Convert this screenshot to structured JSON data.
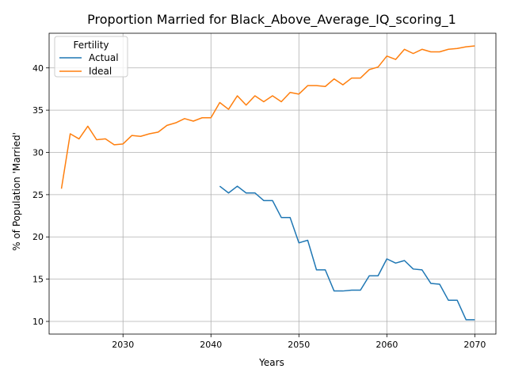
{
  "chart_data": {
    "type": "line",
    "title": "Proportion Married for Black_Above_Average_IQ_scoring_1",
    "xlabel": "Years",
    "ylabel": "% of Population 'Married'",
    "xlim": [
      2021.6,
      2072.4
    ],
    "ylim": [
      8.5,
      44.1
    ],
    "xticks": [
      2030,
      2040,
      2050,
      2060,
      2070
    ],
    "yticks": [
      10,
      15,
      20,
      25,
      30,
      35,
      40
    ],
    "grid": true,
    "legend": {
      "title": "Fertility",
      "placement": "top-left",
      "entries": [
        "Actual",
        "Ideal"
      ]
    },
    "series": [
      {
        "name": "Actual",
        "color": "#1f77b4",
        "x": [
          2041,
          2042,
          2043,
          2044,
          2045,
          2046,
          2047,
          2048,
          2049,
          2050,
          2051,
          2052,
          2053,
          2054,
          2055,
          2056,
          2057,
          2058,
          2059,
          2060,
          2061,
          2062,
          2063,
          2064,
          2065,
          2066,
          2067,
          2068,
          2069,
          2070
        ],
        "values": [
          26.0,
          25.2,
          26.0,
          25.2,
          25.2,
          24.3,
          24.3,
          22.3,
          22.3,
          19.3,
          19.6,
          16.1,
          16.1,
          13.6,
          13.6,
          13.7,
          13.7,
          15.4,
          15.4,
          17.4,
          16.9,
          17.2,
          16.2,
          16.1,
          14.5,
          14.4,
          12.5,
          12.5,
          10.2,
          10.2
        ]
      },
      {
        "name": "Ideal",
        "color": "#ff7f0e",
        "x": [
          2023,
          2024,
          2025,
          2026,
          2027,
          2028,
          2029,
          2030,
          2031,
          2032,
          2033,
          2034,
          2035,
          2036,
          2037,
          2038,
          2039,
          2040,
          2041,
          2042,
          2043,
          2044,
          2045,
          2046,
          2047,
          2048,
          2049,
          2050,
          2051,
          2052,
          2053,
          2054,
          2055,
          2056,
          2057,
          2058,
          2059,
          2060,
          2061,
          2062,
          2063,
          2064,
          2065,
          2066,
          2067,
          2068,
          2069,
          2070
        ],
        "values": [
          25.7,
          32.2,
          31.6,
          33.1,
          31.5,
          31.6,
          30.9,
          31.0,
          32.0,
          31.9,
          32.2,
          32.4,
          33.2,
          33.5,
          34.0,
          33.7,
          34.1,
          34.1,
          35.9,
          35.1,
          36.7,
          35.6,
          36.7,
          36.0,
          36.7,
          36.0,
          37.1,
          36.9,
          37.9,
          37.9,
          37.8,
          38.7,
          38.0,
          38.8,
          38.8,
          39.8,
          40.1,
          41.4,
          41.0,
          42.2,
          41.7,
          42.2,
          41.9,
          41.9,
          42.2,
          42.3,
          42.5,
          42.6
        ]
      }
    ]
  }
}
